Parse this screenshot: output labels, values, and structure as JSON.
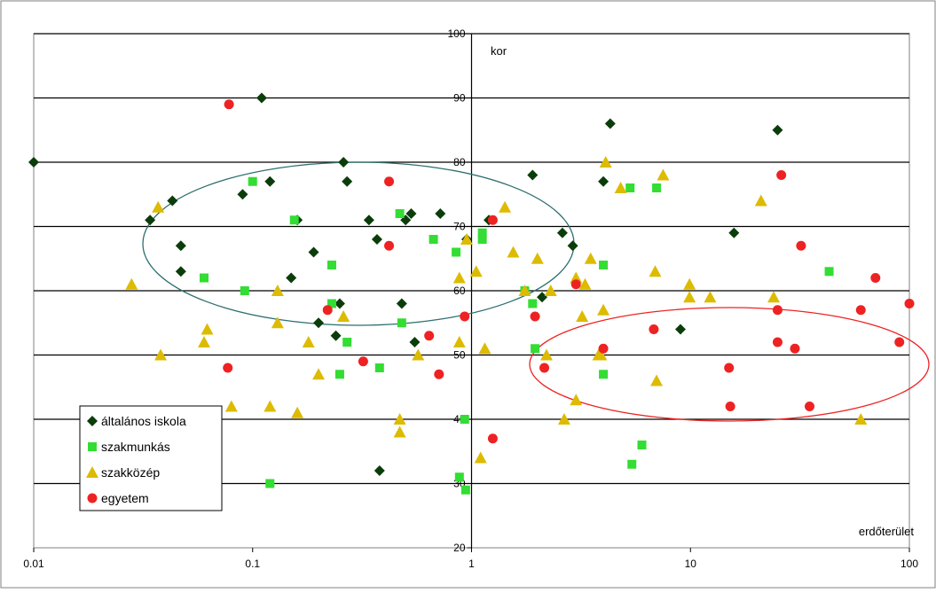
{
  "chart_data": {
    "type": "scatter",
    "xlabel": "erdőterület",
    "ylabel": "kor",
    "xscale": "log",
    "xlim": [
      0.01,
      100
    ],
    "ylim": [
      20,
      100
    ],
    "xticks": [
      "0.01",
      "0.1",
      "1",
      "10",
      "100"
    ],
    "yticks": [
      "20",
      "30",
      "40",
      "50",
      "60",
      "70",
      "80",
      "90",
      "100"
    ],
    "grid": "horizontal",
    "legend": "bottom-left",
    "series": [
      {
        "name": "általános iskola",
        "color": "#0b3d0b",
        "marker": "diamond",
        "points": [
          [
            0.01,
            80
          ],
          [
            0.034,
            71
          ],
          [
            0.043,
            74
          ],
          [
            0.047,
            67
          ],
          [
            0.047,
            63
          ],
          [
            0.09,
            75
          ],
          [
            0.11,
            90
          ],
          [
            0.12,
            77
          ],
          [
            0.15,
            62
          ],
          [
            0.16,
            71
          ],
          [
            0.19,
            66
          ],
          [
            0.2,
            55
          ],
          [
            0.24,
            53
          ],
          [
            0.25,
            58
          ],
          [
            0.26,
            80
          ],
          [
            0.27,
            77
          ],
          [
            0.34,
            71
          ],
          [
            0.37,
            68
          ],
          [
            0.38,
            32
          ],
          [
            0.48,
            58
          ],
          [
            0.5,
            71
          ],
          [
            0.53,
            72
          ],
          [
            0.55,
            52
          ],
          [
            0.72,
            72
          ],
          [
            0.95,
            68
          ],
          [
            1.2,
            71
          ],
          [
            1.9,
            78
          ],
          [
            2.1,
            59
          ],
          [
            2.6,
            69
          ],
          [
            2.9,
            67
          ],
          [
            4.0,
            77
          ],
          [
            4.3,
            86
          ],
          [
            9.0,
            54
          ],
          [
            15.8,
            69
          ],
          [
            25.0,
            85
          ]
        ]
      },
      {
        "name": "szakmunkás",
        "color": "#33dd33",
        "marker": "square",
        "points": [
          [
            0.06,
            62
          ],
          [
            0.092,
            60
          ],
          [
            0.1,
            77
          ],
          [
            0.12,
            30
          ],
          [
            0.155,
            71
          ],
          [
            0.23,
            64
          ],
          [
            0.23,
            58
          ],
          [
            0.25,
            47
          ],
          [
            0.27,
            52
          ],
          [
            0.38,
            48
          ],
          [
            0.47,
            72
          ],
          [
            0.48,
            55
          ],
          [
            0.67,
            68
          ],
          [
            0.85,
            66
          ],
          [
            0.88,
            31
          ],
          [
            0.93,
            40
          ],
          [
            0.94,
            29
          ],
          [
            1.12,
            68
          ],
          [
            1.12,
            69
          ],
          [
            1.75,
            60
          ],
          [
            1.95,
            51
          ],
          [
            1.9,
            58
          ],
          [
            4.0,
            64
          ],
          [
            4.0,
            47
          ],
          [
            5.3,
            76
          ],
          [
            5.4,
            33
          ],
          [
            6.0,
            36
          ],
          [
            7.0,
            76
          ],
          [
            43.0,
            63
          ]
        ]
      },
      {
        "name": "szakközép",
        "color": "#ddbb00",
        "marker": "triangle",
        "points": [
          [
            0.028,
            61
          ],
          [
            0.037,
            73
          ],
          [
            0.038,
            50
          ],
          [
            0.06,
            52
          ],
          [
            0.062,
            54
          ],
          [
            0.08,
            42
          ],
          [
            0.12,
            42
          ],
          [
            0.13,
            55
          ],
          [
            0.13,
            60
          ],
          [
            0.16,
            41
          ],
          [
            0.18,
            52
          ],
          [
            0.2,
            47
          ],
          [
            0.26,
            56
          ],
          [
            0.47,
            40
          ],
          [
            0.47,
            38
          ],
          [
            0.57,
            50
          ],
          [
            0.88,
            52
          ],
          [
            0.88,
            62
          ],
          [
            0.95,
            68
          ],
          [
            1.05,
            63
          ],
          [
            1.1,
            34
          ],
          [
            1.15,
            51
          ],
          [
            1.42,
            73
          ],
          [
            1.55,
            66
          ],
          [
            1.75,
            60
          ],
          [
            2.0,
            65
          ],
          [
            2.2,
            50
          ],
          [
            2.3,
            60
          ],
          [
            2.65,
            40
          ],
          [
            3.0,
            43
          ],
          [
            3.0,
            62
          ],
          [
            3.2,
            56
          ],
          [
            3.3,
            61
          ],
          [
            3.5,
            65
          ],
          [
            3.8,
            50
          ],
          [
            3.9,
            50
          ],
          [
            4.0,
            57
          ],
          [
            4.1,
            80
          ],
          [
            4.8,
            76
          ],
          [
            6.9,
            63
          ],
          [
            7.0,
            46
          ],
          [
            7.5,
            78
          ],
          [
            9.9,
            61
          ],
          [
            9.9,
            59
          ],
          [
            12.3,
            59
          ],
          [
            21.0,
            74
          ],
          [
            24.0,
            59
          ],
          [
            60.0,
            40
          ]
        ]
      },
      {
        "name": "egyetem",
        "color": "#ee2222",
        "marker": "circle",
        "points": [
          [
            0.077,
            48
          ],
          [
            0.078,
            89
          ],
          [
            0.22,
            57
          ],
          [
            0.32,
            49
          ],
          [
            0.42,
            67
          ],
          [
            0.42,
            77
          ],
          [
            0.64,
            53
          ],
          [
            0.71,
            47
          ],
          [
            0.93,
            56
          ],
          [
            1.25,
            37
          ],
          [
            1.25,
            71
          ],
          [
            1.95,
            56
          ],
          [
            2.15,
            48
          ],
          [
            3.0,
            61
          ],
          [
            4.0,
            51
          ],
          [
            6.8,
            54
          ],
          [
            15.0,
            48
          ],
          [
            15.2,
            42
          ],
          [
            25.0,
            57
          ],
          [
            25.0,
            52
          ],
          [
            26.0,
            78
          ],
          [
            30.0,
            51
          ],
          [
            32.0,
            67
          ],
          [
            35.0,
            42
          ],
          [
            60.0,
            57
          ],
          [
            70.0,
            62
          ],
          [
            90.0,
            52
          ],
          [
            100.0,
            58
          ]
        ]
      }
    ]
  }
}
